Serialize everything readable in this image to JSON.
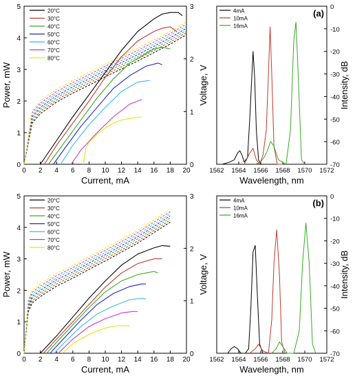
{
  "chart_data": [
    {
      "panel": "a-left",
      "type": "line",
      "xlabel": "Current, mA",
      "ylabel": "Power, mW",
      "y2label": "Voltage, V",
      "xlim": [
        0,
        20
      ],
      "ylim": [
        0,
        5
      ],
      "y2lim": [
        0,
        3
      ],
      "xticks": [
        "0",
        "2",
        "4",
        "6",
        "8",
        "10",
        "12",
        "14",
        "16",
        "18",
        "20"
      ],
      "yticks": [
        "0",
        "1",
        "2",
        "3",
        "4",
        "5"
      ],
      "y2ticks": [
        "0",
        "1",
        "2",
        "3"
      ],
      "legend": [
        "20°C",
        "30°C",
        "40°C",
        "50°C",
        "60°C",
        "70°C",
        "80°C"
      ],
      "colors": [
        "#000000",
        "#c0392b",
        "#33aa22",
        "#2323c8",
        "#33bbee",
        "#cc33cc",
        "#e6e600"
      ],
      "power_series": [
        {
          "x": [
            2.0,
            4,
            6,
            8,
            10,
            12,
            14,
            16,
            17,
            18,
            19,
            19.5
          ],
          "y": [
            0,
            0.75,
            1.5,
            2.2,
            2.9,
            3.6,
            4.2,
            4.6,
            4.75,
            4.8,
            4.8,
            4.7
          ]
        },
        {
          "x": [
            2.5,
            4,
            6,
            8,
            10,
            12,
            14,
            16,
            17,
            18,
            18.8
          ],
          "y": [
            0,
            0.6,
            1.3,
            2.0,
            2.75,
            3.4,
            3.9,
            4.2,
            4.3,
            4.35,
            4.2
          ]
        },
        {
          "x": [
            3.0,
            5,
            7,
            9,
            11,
            13,
            15,
            16,
            17,
            18
          ],
          "y": [
            0,
            0.7,
            1.4,
            2.1,
            2.7,
            3.2,
            3.5,
            3.65,
            3.7,
            3.65
          ]
        },
        {
          "x": [
            3.6,
            5,
            7,
            9,
            11,
            13,
            15,
            16.5,
            17
          ],
          "y": [
            0,
            0.5,
            1.2,
            1.8,
            2.4,
            2.8,
            3.1,
            3.2,
            3.15
          ]
        },
        {
          "x": [
            4.5,
            6,
            8,
            10,
            12,
            14,
            15.5
          ],
          "y": [
            0,
            0.6,
            1.25,
            1.8,
            2.3,
            2.6,
            2.65
          ]
        },
        {
          "x": [
            5.8,
            7,
            9,
            11,
            13,
            14.5
          ],
          "y": [
            0,
            0.45,
            1.0,
            1.5,
            1.9,
            2.05
          ]
        },
        {
          "x": [
            7.3,
            7.6,
            8,
            9,
            10,
            11,
            12,
            13,
            14.5
          ],
          "y": [
            0,
            0.5,
            0.7,
            0.95,
            1.15,
            1.3,
            1.4,
            1.45,
            1.5
          ]
        }
      ],
      "voltage_series": {
        "x": [
          0,
          1,
          2,
          4,
          6,
          8,
          10,
          12,
          14,
          16,
          18,
          20
        ],
        "y": [
          0,
          0.9,
          1.08,
          1.3,
          1.47,
          1.62,
          1.78,
          1.93,
          2.08,
          2.24,
          2.4,
          2.58
        ],
        "spread": 0.04
      }
    },
    {
      "panel": "a-right",
      "type": "line",
      "panel_label": "(a)",
      "xlabel": "Wavelength, nm",
      "ylabel": "Intensity, dB",
      "xlim": [
        1562,
        1572
      ],
      "ylim": [
        -70,
        0
      ],
      "xticks": [
        "1562",
        "1564",
        "1566",
        "1568",
        "1570",
        "1572"
      ],
      "yticks": [
        "0",
        "-10",
        "-20",
        "-30",
        "-40",
        "-50",
        "-60",
        "-70"
      ],
      "legend": [
        "4mA",
        "10mA",
        "16mA"
      ],
      "colors": [
        "#000000",
        "#c0392b",
        "#33aa22"
      ],
      "spectra": [
        {
          "x": [
            1562.5,
            1563.2,
            1563.6,
            1563.9,
            1564.1,
            1564.3,
            1564.5,
            1564.8,
            1565.0,
            1565.2,
            1565.3,
            1565.45,
            1565.6,
            1565.8,
            1566.0
          ],
          "y": [
            -70,
            -69,
            -68,
            -65,
            -64,
            -66,
            -69,
            -67,
            -50,
            -30,
            -20,
            -32,
            -55,
            -68,
            -70
          ]
        },
        {
          "x": [
            1564.5,
            1565.0,
            1565.3,
            1565.6,
            1565.9,
            1566.2,
            1566.5,
            1566.7,
            1566.85,
            1567.0,
            1567.2,
            1567.5,
            1568.0
          ],
          "y": [
            -70,
            -65,
            -63,
            -68,
            -70,
            -66,
            -55,
            -30,
            -9,
            -30,
            -62,
            -70,
            -70
          ]
        },
        {
          "x": [
            1565.5,
            1566.0,
            1566.3,
            1566.6,
            1566.9,
            1567.2,
            1567.6,
            1568.3,
            1568.7,
            1569.0,
            1569.2,
            1569.4,
            1569.7,
            1570.0
          ],
          "y": [
            -70,
            -69,
            -67,
            -64,
            -60,
            -62,
            -68,
            -70,
            -55,
            -15,
            -7,
            -30,
            -68,
            -70
          ]
        }
      ]
    },
    {
      "panel": "b-left",
      "type": "line",
      "xlabel": "Current, mA",
      "ylabel": "Power, mW",
      "y2label": "Voltage, V",
      "xlim": [
        0,
        20
      ],
      "ylim": [
        0,
        5
      ],
      "y2lim": [
        0,
        3
      ],
      "xticks": [
        "0",
        "2",
        "4",
        "6",
        "8",
        "10",
        "12",
        "14",
        "16",
        "18",
        "20"
      ],
      "yticks": [
        "0",
        "1",
        "2",
        "3",
        "4",
        "5"
      ],
      "y2ticks": [
        "0",
        "1",
        "2",
        "3"
      ],
      "legend": [
        "20°C",
        "30°C",
        "40°C",
        "50°C",
        "60°C",
        "70°C",
        "80°C"
      ],
      "colors": [
        "#000000",
        "#c0392b",
        "#33aa22",
        "#2323c8",
        "#33bbee",
        "#cc33cc",
        "#e6e600"
      ],
      "power_series": [
        {
          "x": [
            2.0,
            4,
            6,
            8,
            10,
            12,
            14,
            16,
            17,
            18
          ],
          "y": [
            0,
            0.55,
            1.15,
            1.75,
            2.3,
            2.8,
            3.15,
            3.35,
            3.42,
            3.4
          ]
        },
        {
          "x": [
            2.4,
            4,
            6,
            8,
            10,
            12,
            14,
            16,
            17
          ],
          "y": [
            0,
            0.45,
            1.0,
            1.55,
            2.1,
            2.55,
            2.85,
            3.0,
            3.0
          ]
        },
        {
          "x": [
            2.8,
            4,
            6,
            8,
            10,
            12,
            14,
            16,
            16.5
          ],
          "y": [
            0,
            0.35,
            0.9,
            1.45,
            1.95,
            2.3,
            2.5,
            2.6,
            2.55
          ]
        },
        {
          "x": [
            3.2,
            5,
            7,
            9,
            11,
            13,
            14.5,
            15
          ],
          "y": [
            0,
            0.5,
            1.05,
            1.55,
            1.9,
            2.12,
            2.2,
            2.2
          ]
        },
        {
          "x": [
            3.7,
            5,
            7,
            9,
            11,
            13,
            14.5,
            15
          ],
          "y": [
            0,
            0.35,
            0.85,
            1.25,
            1.5,
            1.7,
            1.75,
            1.72
          ]
        },
        {
          "x": [
            4.2,
            6,
            8,
            10,
            12,
            13.5,
            14
          ],
          "y": [
            0,
            0.45,
            0.85,
            1.1,
            1.28,
            1.33,
            1.32
          ]
        },
        {
          "x": [
            4.7,
            6,
            8,
            10,
            11.5,
            13
          ],
          "y": [
            0,
            0.3,
            0.6,
            0.8,
            0.88,
            0.87
          ]
        }
      ],
      "voltage_series": {
        "x": [
          0,
          0.5,
          1,
          2,
          4,
          6,
          8,
          10,
          12,
          14,
          16,
          18
        ],
        "y": [
          0,
          0.9,
          1.08,
          1.2,
          1.4,
          1.55,
          1.72,
          1.88,
          2.05,
          2.22,
          2.42,
          2.62
        ],
        "spread": 0.04
      }
    },
    {
      "panel": "b-right",
      "type": "line",
      "panel_label": "(b)",
      "xlabel": "Wavelength, nm",
      "ylabel": "Intensity, dB",
      "xlim": [
        1562,
        1572
      ],
      "ylim": [
        -70,
        0
      ],
      "xticks": [
        "1562",
        "1564",
        "1566",
        "1568",
        "1570",
        "1572"
      ],
      "yticks": [
        "0",
        "-10",
        "-20",
        "-30",
        "-40",
        "-50",
        "-60",
        "-70"
      ],
      "legend": [
        "4mA",
        "10mA",
        "16mA"
      ],
      "colors": [
        "#000000",
        "#c0392b",
        "#33aa22"
      ],
      "spectra": [
        {
          "x": [
            1563.0,
            1563.3,
            1563.6,
            1563.9,
            1564.2,
            1564.6,
            1564.9,
            1565.1,
            1565.3,
            1565.5,
            1565.7,
            1565.9,
            1566.2
          ],
          "y": [
            -70,
            -68,
            -67,
            -68,
            -70,
            -70,
            -68,
            -50,
            -25,
            -22,
            -45,
            -66,
            -70
          ]
        },
        {
          "x": [
            1565.0,
            1565.5,
            1565.8,
            1566.2,
            1566.7,
            1567.0,
            1567.2,
            1567.45,
            1567.7,
            1567.9,
            1568.2
          ],
          "y": [
            -70,
            -68,
            -66,
            -69,
            -70,
            -55,
            -30,
            -15,
            -35,
            -65,
            -70
          ]
        },
        {
          "x": [
            1567.0,
            1567.4,
            1567.7,
            1568.0,
            1568.4,
            1569.0,
            1569.5,
            1569.8,
            1570.1,
            1570.4,
            1570.7,
            1571.0
          ],
          "y": [
            -70,
            -68,
            -65,
            -67,
            -70,
            -70,
            -60,
            -30,
            -12,
            -30,
            -66,
            -70
          ]
        }
      ]
    }
  ]
}
